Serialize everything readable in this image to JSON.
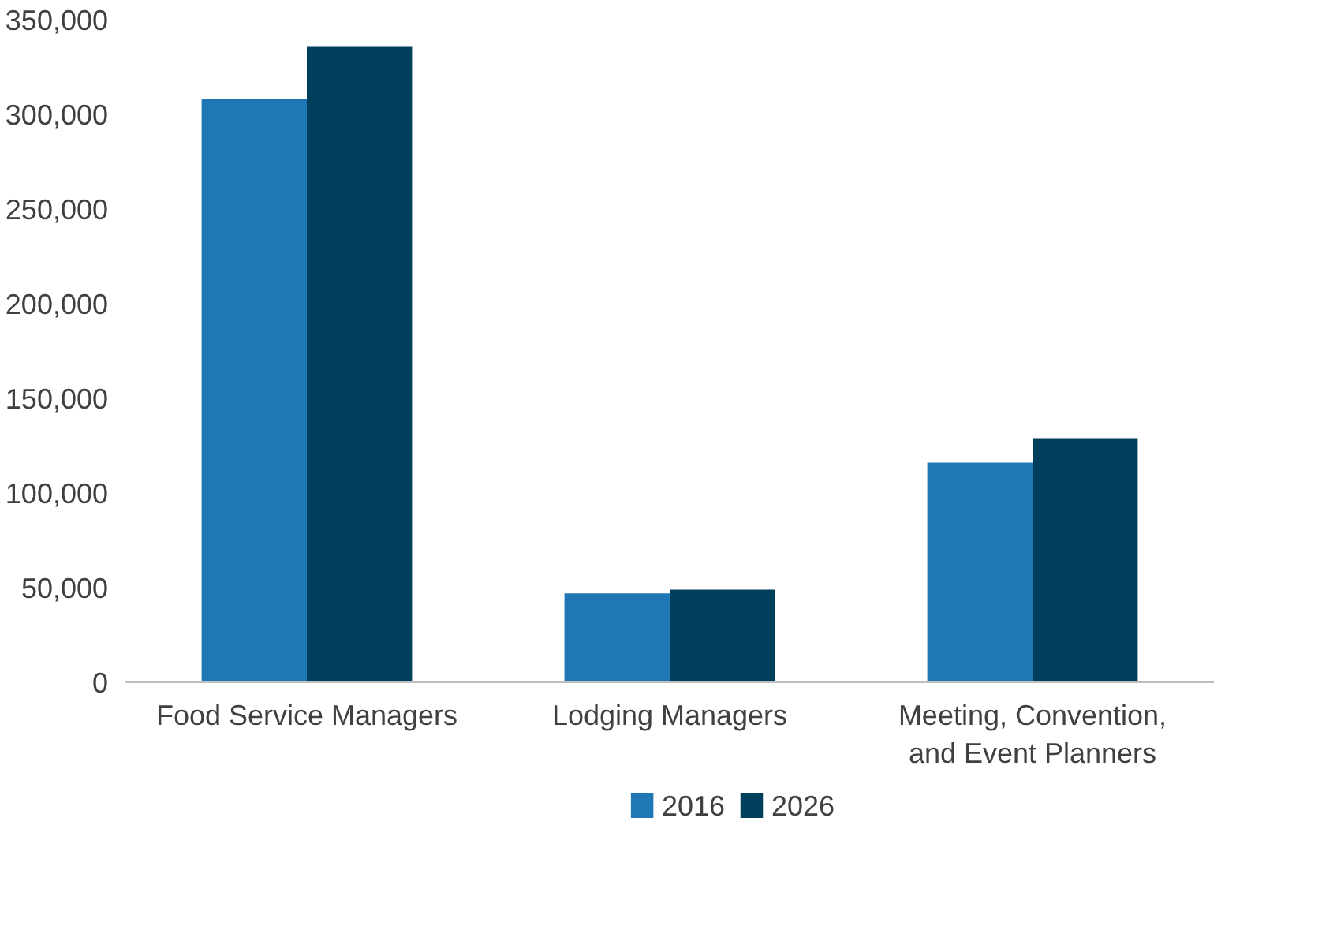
{
  "chart_data": {
    "type": "bar",
    "categories": [
      "Food Service Managers",
      "Lodging Managers",
      "Meeting, Convention,\nand Event Planners"
    ],
    "series": [
      {
        "name": "2016",
        "color": "#1f77b4",
        "values": [
          308000,
          47000,
          116000
        ]
      },
      {
        "name": "2026",
        "color": "#003f5c",
        "values": [
          336000,
          49000,
          129000
        ]
      }
    ],
    "ylim": [
      0,
      350000
    ],
    "yticks": [
      {
        "value": 0,
        "label": "0"
      },
      {
        "value": 50000,
        "label": "50,000"
      },
      {
        "value": 100000,
        "label": "100,000"
      },
      {
        "value": 150000,
        "label": "150,000"
      },
      {
        "value": 200000,
        "label": "200,000"
      },
      {
        "value": 250000,
        "label": "250,000"
      },
      {
        "value": 300000,
        "label": "300,000"
      },
      {
        "value": 350000,
        "label": "350,000"
      }
    ],
    "grid": false,
    "legend": "bottom"
  }
}
